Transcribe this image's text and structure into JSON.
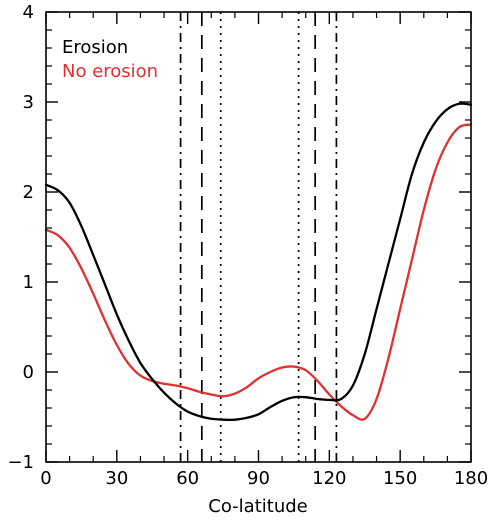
{
  "chart_data": {
    "type": "line",
    "title": "",
    "xlabel": "Co-latitude",
    "ylabel": "",
    "xlim": [
      0,
      180
    ],
    "ylim": [
      -1,
      4
    ],
    "grid": false,
    "legend_placement": "top-left",
    "x_ticks": [
      0,
      30,
      60,
      90,
      120,
      150,
      180
    ],
    "x_tick_labels": [
      "0",
      "30",
      "60",
      "90",
      "120",
      "150",
      "180"
    ],
    "y_ticks": [
      -1,
      0,
      1,
      2,
      3,
      4
    ],
    "y_tick_labels": [
      "−1",
      "0",
      "1",
      "2",
      "3",
      "4"
    ],
    "x_minor_step": 10,
    "y_minor_step": 0.2,
    "series": [
      {
        "name": "Erosion",
        "color": "#000000",
        "x": [
          0,
          5,
          10,
          15,
          20,
          25,
          30,
          35,
          40,
          45,
          50,
          55,
          60,
          65,
          70,
          75,
          80,
          85,
          90,
          95,
          100,
          105,
          110,
          115,
          120,
          125,
          130,
          135,
          140,
          145,
          150,
          155,
          160,
          165,
          170,
          175,
          180
        ],
        "y": [
          2.08,
          2.02,
          1.88,
          1.62,
          1.3,
          0.97,
          0.64,
          0.35,
          0.1,
          -0.08,
          -0.23,
          -0.35,
          -0.44,
          -0.49,
          -0.52,
          -0.53,
          -0.53,
          -0.51,
          -0.47,
          -0.39,
          -0.32,
          -0.28,
          -0.28,
          -0.3,
          -0.31,
          -0.3,
          -0.15,
          0.2,
          0.7,
          1.2,
          1.7,
          2.2,
          2.55,
          2.78,
          2.92,
          2.98,
          2.97
        ]
      },
      {
        "name": "No erosion",
        "color": "#e03030",
        "x": [
          0,
          5,
          10,
          15,
          20,
          25,
          30,
          35,
          40,
          45,
          50,
          55,
          60,
          65,
          70,
          75,
          80,
          85,
          90,
          95,
          100,
          105,
          110,
          115,
          120,
          125,
          130,
          135,
          140,
          145,
          150,
          155,
          160,
          165,
          170,
          175,
          180
        ],
        "y": [
          1.58,
          1.52,
          1.38,
          1.15,
          0.87,
          0.57,
          0.3,
          0.09,
          -0.04,
          -0.1,
          -0.13,
          -0.15,
          -0.18,
          -0.22,
          -0.25,
          -0.27,
          -0.24,
          -0.17,
          -0.07,
          0.0,
          0.05,
          0.06,
          0.02,
          -0.1,
          -0.25,
          -0.38,
          -0.48,
          -0.52,
          -0.3,
          0.15,
          0.7,
          1.25,
          1.8,
          2.25,
          2.55,
          2.72,
          2.75
        ]
      }
    ],
    "vertical_lines": [
      {
        "x": 57,
        "style": "dash-dot"
      },
      {
        "x": 66,
        "style": "dashed"
      },
      {
        "x": 74,
        "style": "dotted"
      },
      {
        "x": 107,
        "style": "dotted"
      },
      {
        "x": 114,
        "style": "dashed"
      },
      {
        "x": 123,
        "style": "dash-dot"
      }
    ]
  }
}
